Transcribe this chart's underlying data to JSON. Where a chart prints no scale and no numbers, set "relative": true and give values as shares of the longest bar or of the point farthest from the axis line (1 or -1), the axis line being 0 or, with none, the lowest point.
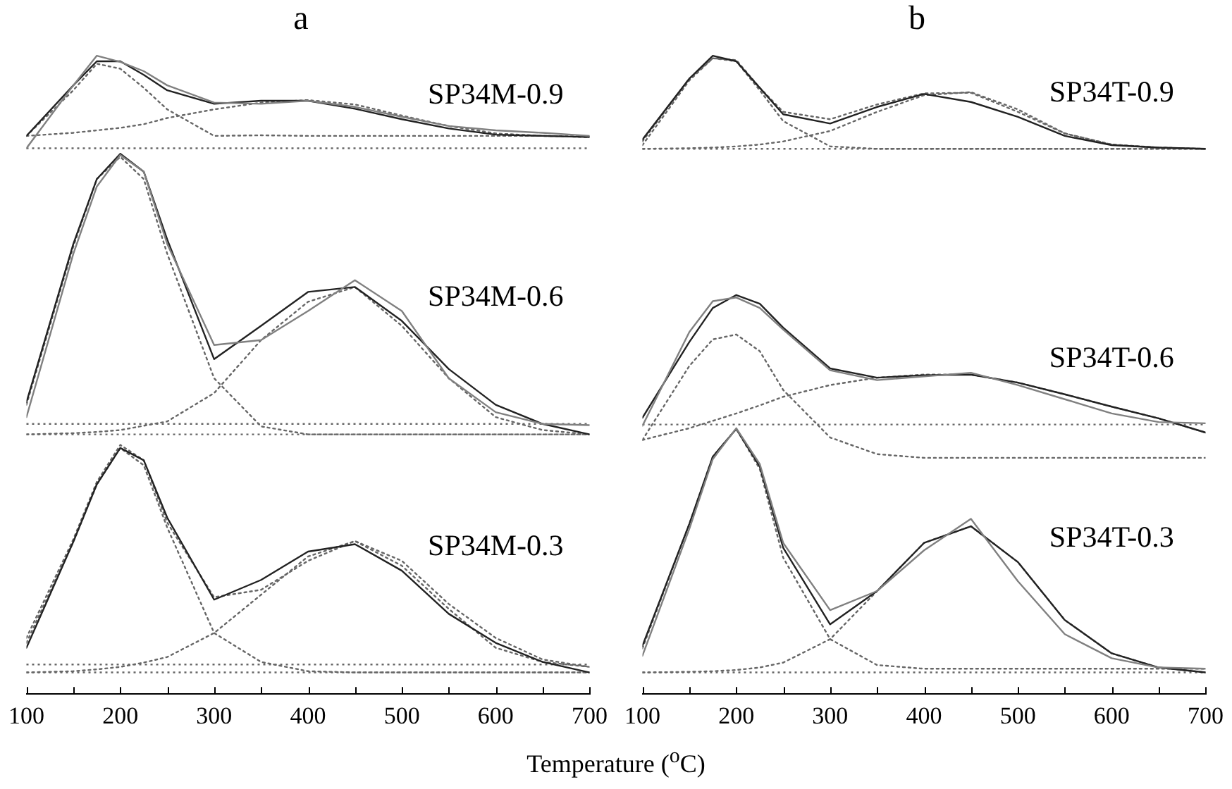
{
  "chart_data": [
    {
      "type": "line",
      "title": "a",
      "xlabel": "Temperature ($^{o}$C)",
      "relative": true,
      "marker": "none",
      "xlim": [
        100,
        700
      ],
      "xticks": [
        100,
        {
          "value": 150,
          "label": null
        },
        200,
        {
          "value": 250,
          "label": null
        },
        300,
        {
          "value": 350,
          "label": null
        },
        400,
        {
          "value": 450,
          "label": null
        },
        500,
        {
          "value": 550,
          "label": null
        },
        600,
        {
          "value": 650,
          "label": null
        },
        700
      ],
      "x": [
        100,
        150,
        175,
        200,
        225,
        250,
        300,
        350,
        400,
        450,
        500,
        550,
        600,
        650,
        700
      ],
      "series": [
        {
          "color": "#808080",
          "line_style": "solid",
          "values": [
            0.85,
            0.952,
            1.0,
            0.99,
            0.975,
            0.952,
            0.924,
            0.922,
            0.927,
            0.917,
            0.901,
            0.886,
            0.879,
            0.875,
            0.87
          ]
        },
        {
          "name": "SP34M-0.9",
          "color": "#222222",
          "line_style": "solid",
          "values": [
            0.87,
            0.952,
            0.991,
            0.991,
            0.969,
            0.944,
            0.922,
            0.927,
            0.927,
            0.914,
            0.897,
            0.882,
            0.872,
            0.87,
            0.868
          ]
        },
        {
          "color": "#666666",
          "line_style": "dotted",
          "values": [
            0.87,
            0.944,
            0.987,
            0.979,
            0.948,
            0.913,
            0.87,
            0.871,
            0.87,
            0.87,
            0.87,
            0.87,
            0.87,
            0.87,
            0.869
          ]
        },
        {
          "color": "#666666",
          "line_style": "dotted",
          "values": [
            0.87,
            0.875,
            0.879,
            0.883,
            0.889,
            0.899,
            0.913,
            0.924,
            0.928,
            0.921,
            0.903,
            0.886,
            0.874,
            0.87,
            0.868
          ]
        },
        {
          "color": "#808080",
          "line_style": "solid",
          "values": [
            0.414,
            0.679,
            0.788,
            0.839,
            0.812,
            0.695,
            0.531,
            0.539,
            0.586,
            0.636,
            0.586,
            0.477,
            0.422,
            0.403,
            0.401
          ]
        },
        {
          "name": "SP34M-0.6",
          "color": "#222222",
          "line_style": "solid",
          "values": [
            0.438,
            0.695,
            0.8,
            0.841,
            0.812,
            0.702,
            0.508,
            0.562,
            0.617,
            0.625,
            0.57,
            0.492,
            0.434,
            0.403,
            0.386
          ]
        },
        {
          "color": "#666666",
          "line_style": "dotted",
          "values": [
            0.434,
            0.691,
            0.8,
            0.836,
            0.8,
            0.679,
            0.477,
            0.399,
            0.386,
            0.386,
            0.386,
            0.386,
            0.386,
            0.386,
            0.386
          ]
        },
        {
          "color": "#666666",
          "line_style": "dotted",
          "values": [
            0.386,
            0.388,
            0.39,
            0.393,
            0.4,
            0.407,
            0.453,
            0.539,
            0.601,
            0.625,
            0.562,
            0.477,
            0.414,
            0.393,
            0.386
          ]
        },
        {
          "name": "SP34M-0.3",
          "color": "#222222",
          "line_style": "solid",
          "values": [
            0.04,
            0.212,
            0.305,
            0.364,
            0.344,
            0.251,
            0.118,
            0.15,
            0.196,
            0.208,
            0.165,
            0.095,
            0.048,
            0.017,
            0.0
          ]
        },
        {
          "color": "#666666",
          "line_style": "dotted",
          "values": [
            0.056,
            0.216,
            0.309,
            0.369,
            0.344,
            0.243,
            0.122,
            0.134,
            0.181,
            0.213,
            0.173,
            0.103,
            0.04,
            0.017,
            0.009
          ]
        },
        {
          "color": "#666666",
          "line_style": "dotted",
          "values": [
            0.048,
            0.212,
            0.305,
            0.364,
            0.336,
            0.235,
            0.064,
            0.017,
            0.002,
            0.0,
            0.0,
            0.0,
            0.0,
            0.0,
            0.0
          ]
        },
        {
          "color": "#666666",
          "line_style": "dotted",
          "values": [
            0.0,
            0.002,
            0.005,
            0.009,
            0.016,
            0.025,
            0.064,
            0.126,
            0.188,
            0.213,
            0.181,
            0.111,
            0.056,
            0.021,
            0.009
          ]
        }
      ],
      "ref_lines": [
        {
          "axis": "y",
          "value": 0.85,
          "color": "#666666",
          "line_style": "dotted"
        },
        {
          "axis": "y",
          "value": 0.403,
          "color": "#666666",
          "line_style": "dotted"
        },
        {
          "axis": "y",
          "value": 0.386,
          "color": "#666666",
          "line_style": "dotted"
        },
        {
          "axis": "y",
          "value": 0.013,
          "color": "#666666",
          "line_style": "dotted"
        },
        {
          "axis": "y",
          "value": 0.0,
          "color": "#666666",
          "line_style": "dotted"
        }
      ]
    },
    {
      "type": "line",
      "title": "b",
      "relative": true,
      "marker": "none",
      "xlim": [
        100,
        700
      ],
      "xticks": [
        100,
        {
          "value": 150,
          "label": null
        },
        200,
        {
          "value": 250,
          "label": null
        },
        300,
        {
          "value": 350,
          "label": null
        },
        400,
        {
          "value": 450,
          "label": null
        },
        500,
        {
          "value": 550,
          "label": null
        },
        600,
        {
          "value": 650,
          "label": null
        },
        700
      ],
      "x": [
        100,
        150,
        175,
        200,
        225,
        250,
        300,
        350,
        400,
        450,
        500,
        550,
        600,
        650,
        700
      ],
      "series": [
        {
          "name": "SP34T-0.9",
          "color": "#222222",
          "line_style": "solid",
          "values": [
            0.864,
            0.963,
            1.0,
            0.991,
            0.948,
            0.905,
            0.89,
            0.917,
            0.938,
            0.925,
            0.901,
            0.87,
            0.855,
            0.851,
            0.849
          ]
        },
        {
          "color": "#666666",
          "line_style": "dotted",
          "values": [
            0.861,
            0.963,
            0.996,
            0.993,
            0.948,
            0.909,
            0.897,
            0.921,
            0.939,
            0.94,
            0.909,
            0.874,
            0.856,
            0.851,
            0.849
          ]
        },
        {
          "color": "#666666",
          "line_style": "dotted",
          "values": [
            0.855,
            0.96,
            0.996,
            0.991,
            0.944,
            0.894,
            0.853,
            0.849,
            0.849,
            0.849,
            0.849,
            0.849,
            0.849,
            0.849,
            0.849
          ]
        },
        {
          "color": "#666666",
          "line_style": "dotted",
          "values": [
            0.849,
            0.85,
            0.851,
            0.853,
            0.856,
            0.861,
            0.878,
            0.909,
            0.936,
            0.941,
            0.913,
            0.874,
            0.856,
            0.851,
            0.849
          ]
        },
        {
          "color": "#808080",
          "line_style": "solid",
          "values": [
            0.4,
            0.552,
            0.602,
            0.608,
            0.591,
            0.556,
            0.49,
            0.474,
            0.48,
            0.486,
            0.466,
            0.443,
            0.42,
            0.406,
            0.404
          ]
        },
        {
          "name": "SP34T-0.6",
          "color": "#222222",
          "line_style": "solid",
          "values": [
            0.413,
            0.536,
            0.591,
            0.612,
            0.598,
            0.559,
            0.493,
            0.478,
            0.482,
            0.483,
            0.47,
            0.451,
            0.431,
            0.412,
            0.389
          ]
        },
        {
          "color": "#666666",
          "line_style": "dotted",
          "values": [
            0.377,
            0.497,
            0.54,
            0.548,
            0.521,
            0.458,
            0.381,
            0.354,
            0.348,
            0.348,
            0.348,
            0.348,
            0.348,
            0.348,
            0.348
          ]
        },
        {
          "color": "#666666",
          "line_style": "dotted",
          "values": [
            0.377,
            0.396,
            0.408,
            0.42,
            0.433,
            0.447,
            0.466,
            0.478,
            0.483,
            0.483,
            0.47,
            0.451,
            0.431,
            0.412,
            0.389
          ]
        },
        {
          "color": "#808080",
          "line_style": "solid",
          "values": [
            0.027,
            0.233,
            0.346,
            0.396,
            0.338,
            0.21,
            0.101,
            0.132,
            0.198,
            0.249,
            0.148,
            0.062,
            0.023,
            0.008,
            0.006
          ]
        },
        {
          "name": "SP34T-0.3",
          "color": "#222222",
          "line_style": "solid",
          "values": [
            0.043,
            0.241,
            0.35,
            0.395,
            0.334,
            0.202,
            0.078,
            0.132,
            0.21,
            0.237,
            0.179,
            0.085,
            0.031,
            0.008,
            0.0
          ]
        },
        {
          "color": "#666666",
          "line_style": "dotted",
          "values": [
            0.039,
            0.241,
            0.35,
            0.395,
            0.33,
            0.186,
            0.054,
            0.012,
            0.006,
            0.006,
            0.006,
            0.006,
            0.006,
            0.006,
            0.006
          ]
        },
        {
          "color": "#666666",
          "line_style": "dotted",
          "values": [
            0.0,
            0.001,
            0.002,
            0.004,
            0.008,
            0.016,
            0.054,
            0.132,
            0.21,
            0.237,
            0.179,
            0.085,
            0.031,
            0.008,
            0.0
          ]
        }
      ],
      "ref_lines": [
        {
          "axis": "y",
          "value": 0.849,
          "color": "#666666",
          "line_style": "dotted"
        },
        {
          "axis": "y",
          "value": 0.402,
          "color": "#666666",
          "line_style": "dotted"
        },
        {
          "axis": "y",
          "value": 0.0,
          "color": "#666666",
          "line_style": "dotted"
        }
      ]
    }
  ]
}
